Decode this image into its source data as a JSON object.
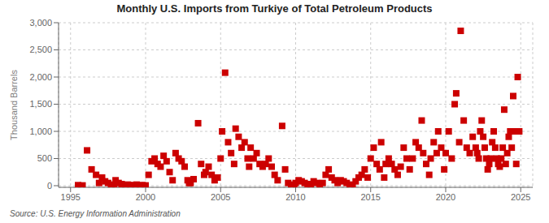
{
  "chart_data": {
    "type": "scatter",
    "title": "Monthly U.S. Imports from Turkiye of Total Petroleum Products",
    "ylabel": "Thousand Barrels",
    "annotation": "Source: U.S. Energy Information Administration",
    "color": "#cc0000",
    "marker": "square",
    "grid": true,
    "xlim": [
      1994.2,
      2025.8
    ],
    "xticks": [
      1995,
      2000,
      2005,
      2010,
      2015,
      2020,
      2025
    ],
    "ylim": [
      -30,
      3000
    ],
    "yticks": [
      0,
      500,
      {
        "value": 1000,
        "label": "1,000"
      },
      {
        "value": 1500,
        "label": "1,500"
      },
      {
        "value": 2000,
        "label": "2,000"
      },
      {
        "value": 2500,
        "label": "2,500"
      },
      {
        "value": 3000,
        "label": "3,000"
      }
    ],
    "x": [
      1995.5,
      1995.8,
      1996.1,
      1996.4,
      1996.7,
      1996.9,
      1997.1,
      1997.3,
      1997.5,
      1997.7,
      1997.9,
      1998.0,
      1998.2,
      1998.4,
      1998.6,
      1998.8,
      1998.9,
      1999.0,
      1999.2,
      1999.4,
      1999.6,
      1999.8,
      2000.0,
      2000.2,
      2000.4,
      2000.6,
      2000.8,
      2001.0,
      2001.2,
      2001.4,
      2001.6,
      2001.8,
      2002.0,
      2002.2,
      2002.4,
      2002.6,
      2002.8,
      2002.9,
      2003.0,
      2003.2,
      2003.5,
      2003.7,
      2003.9,
      2004.0,
      2004.2,
      2004.4,
      2004.6,
      2004.8,
      2005.0,
      2005.1,
      2005.3,
      2005.5,
      2005.7,
      2005.9,
      2006.0,
      2006.2,
      2006.4,
      2006.6,
      2006.8,
      2006.9,
      2007.0,
      2007.2,
      2007.4,
      2007.6,
      2007.8,
      2008.0,
      2008.2,
      2008.4,
      2008.6,
      2008.8,
      2009.1,
      2009.3,
      2009.5,
      2009.7,
      2009.9,
      2010.0,
      2010.2,
      2010.4,
      2010.6,
      2010.8,
      2011.0,
      2011.2,
      2011.4,
      2011.6,
      2011.8,
      2012.0,
      2012.2,
      2012.4,
      2012.6,
      2012.8,
      2013.0,
      2013.2,
      2013.4,
      2013.6,
      2013.8,
      2014.0,
      2014.2,
      2014.4,
      2014.6,
      2014.8,
      2015.0,
      2015.2,
      2015.4,
      2015.6,
      2015.7,
      2015.9,
      2016.0,
      2016.2,
      2016.4,
      2016.6,
      2016.8,
      2017.0,
      2017.2,
      2017.4,
      2017.6,
      2017.8,
      2018.0,
      2018.2,
      2018.4,
      2018.5,
      2018.7,
      2018.9,
      2019.0,
      2019.2,
      2019.4,
      2019.5,
      2019.7,
      2019.9,
      2020.0,
      2020.2,
      2020.4,
      2020.6,
      2020.7,
      2020.9,
      2021.0,
      2021.2,
      2021.4,
      2021.6,
      2021.8,
      2022.0,
      2022.1,
      2022.2,
      2022.3,
      2022.4,
      2022.5,
      2022.6,
      2022.7,
      2022.8,
      2022.9,
      2023.0,
      2023.1,
      2023.2,
      2023.3,
      2023.4,
      2023.5,
      2023.6,
      2023.7,
      2023.8,
      2023.9,
      2024.0,
      2024.1,
      2024.2,
      2024.3,
      2024.4,
      2024.5,
      2024.6,
      2024.7,
      2024.8,
      2024.9
    ],
    "values": [
      10,
      5,
      650,
      300,
      200,
      50,
      150,
      80,
      50,
      20,
      10,
      100,
      50,
      30,
      10,
      20,
      5,
      5,
      10,
      20,
      5,
      10,
      5,
      200,
      450,
      500,
      400,
      350,
      550,
      450,
      250,
      100,
      600,
      500,
      450,
      350,
      100,
      50,
      50,
      120,
      1150,
      400,
      200,
      250,
      350,
      200,
      100,
      150,
      500,
      1000,
      2080,
      800,
      600,
      400,
      1050,
      900,
      700,
      800,
      500,
      350,
      700,
      500,
      600,
      400,
      350,
      400,
      500,
      350,
      200,
      100,
      1100,
      300,
      50,
      20,
      10,
      50,
      100,
      80,
      50,
      20,
      30,
      80,
      50,
      20,
      50,
      200,
      300,
      150,
      100,
      50,
      100,
      80,
      50,
      20,
      10,
      80,
      150,
      200,
      300,
      150,
      500,
      700,
      400,
      300,
      800,
      150,
      400,
      500,
      400,
      300,
      200,
      350,
      700,
      500,
      300,
      500,
      800,
      700,
      1200,
      600,
      400,
      200,
      500,
      800,
      600,
      1000,
      700,
      300,
      600,
      1000,
      500,
      1500,
      1700,
      800,
      2850,
      1200,
      700,
      600,
      900,
      700,
      600,
      500,
      1000,
      1200,
      900,
      700,
      500,
      300,
      400,
      500,
      800,
      1000,
      700,
      500,
      400,
      350,
      500,
      700,
      1400,
      400,
      600,
      900,
      1000,
      700,
      1650,
      1000,
      400,
      2000,
      1000
    ]
  }
}
